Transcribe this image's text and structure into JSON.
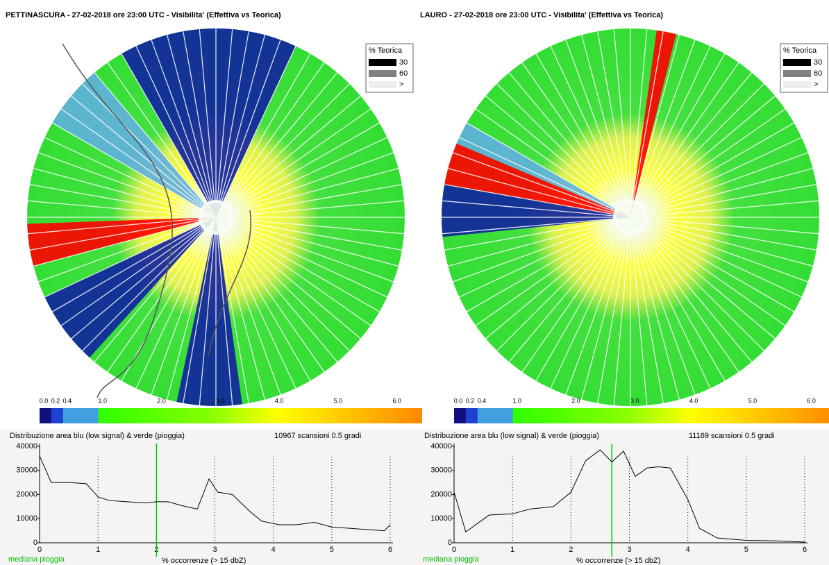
{
  "chart_data": [
    {
      "type": "line",
      "title": "PETTINASCURA - 27-02-2018 ore 23:00 UTC - Visibilita' (Effettiva vs Teorica)",
      "legend_title": "% Teorica",
      "legend": [
        "30",
        "60",
        ">"
      ],
      "legend_colors": [
        "#000000",
        "#808080",
        "#eeeeee"
      ],
      "colorbar_lim": [
        0,
        6.5
      ],
      "colorbar_ticks": [
        {
          "value": 0,
          "label": "0.0"
        },
        {
          "value": 0.2,
          "label": "0.2"
        },
        {
          "value": 0.4,
          "label": "0.4"
        },
        {
          "value": 1,
          "label": "1.0"
        },
        {
          "value": 2,
          "label": "2.0"
        },
        {
          "value": 3,
          "label": "3.0"
        },
        {
          "value": 4,
          "label": "4.0"
        },
        {
          "value": 5,
          "label": "5.0"
        },
        {
          "value": 6,
          "label": "6.0"
        }
      ],
      "subtitle": "Distribuzione area blu (low signal) & verde (pioggia)",
      "annotation": "10967 scansioni 0.5 gradi",
      "x_label": "% occorrenze (> 15 dbZ)",
      "median_label": "mediana pioggia",
      "median": 2.0,
      "color": "#000000",
      "x": [
        0,
        0.2,
        0.5,
        0.8,
        1,
        1.2,
        1.5,
        1.8,
        2,
        2.2,
        2.5,
        2.7,
        2.9,
        3.05,
        3.3,
        3.6,
        3.8,
        4.1,
        4.4,
        4.7,
        5.0,
        5.3,
        5.6,
        5.9,
        6
      ],
      "values": [
        36000,
        25000,
        25000,
        24500,
        19000,
        17500,
        17000,
        16500,
        17000,
        17000,
        15000,
        14000,
        26500,
        21000,
        20000,
        13000,
        9000,
        7500,
        7500,
        8500,
        6500,
        6000,
        5500,
        5000,
        7500
      ],
      "xlim": [
        0,
        6
      ],
      "xticks": [
        0,
        1,
        2,
        3,
        4,
        5,
        6
      ],
      "ylim": [
        0,
        40000
      ],
      "yticks": [
        0,
        10000,
        20000,
        30000,
        40000
      ]
    },
    {
      "type": "line",
      "title": "LAURO - 27-02-2018 ore 23:00 UTC - Visibilita' (Effettiva vs Teorica)",
      "legend_title": "% Teorica",
      "legend": [
        "30",
        "60",
        ">"
      ],
      "legend_colors": [
        "#000000",
        "#808080",
        "#eeeeee"
      ],
      "colorbar_lim": [
        0,
        6.5
      ],
      "colorbar_ticks": [
        {
          "value": 0,
          "label": "0.0"
        },
        {
          "value": 0.2,
          "label": "0.2"
        },
        {
          "value": 0.4,
          "label": "0.4"
        },
        {
          "value": 1,
          "label": "1.0"
        },
        {
          "value": 2,
          "label": "2.0"
        },
        {
          "value": 3,
          "label": "3.0"
        },
        {
          "value": 4,
          "label": "4.0"
        },
        {
          "value": 5,
          "label": "5.0"
        },
        {
          "value": 6,
          "label": "6.0"
        }
      ],
      "subtitle": "Distribuzione area blu (low signal) & verde (pioggia)",
      "annotation": "11169 scansioni 0.5 gradi",
      "x_label": "% occorrenze (> 15 dbZ)",
      "median_label": "mediana pioggia",
      "median": 2.7,
      "color": "#000000",
      "x": [
        0,
        0.2,
        0.6,
        1.0,
        1.3,
        1.7,
        2.0,
        2.25,
        2.5,
        2.7,
        2.9,
        3.1,
        3.3,
        3.5,
        3.7,
        4.0,
        4.2,
        4.5,
        5.0,
        5.5,
        6.0
      ],
      "values": [
        21000,
        4500,
        11500,
        12000,
        14000,
        15000,
        21000,
        34000,
        38500,
        33500,
        38000,
        27500,
        31000,
        31500,
        31000,
        18000,
        6000,
        2000,
        1000,
        800,
        300
      ],
      "xlim": [
        0,
        6
      ],
      "xticks": [
        0,
        1,
        2,
        3,
        4,
        5,
        6
      ],
      "ylim": [
        0,
        40000
      ],
      "yticks": [
        0,
        10000,
        20000,
        30000,
        40000
      ]
    }
  ]
}
